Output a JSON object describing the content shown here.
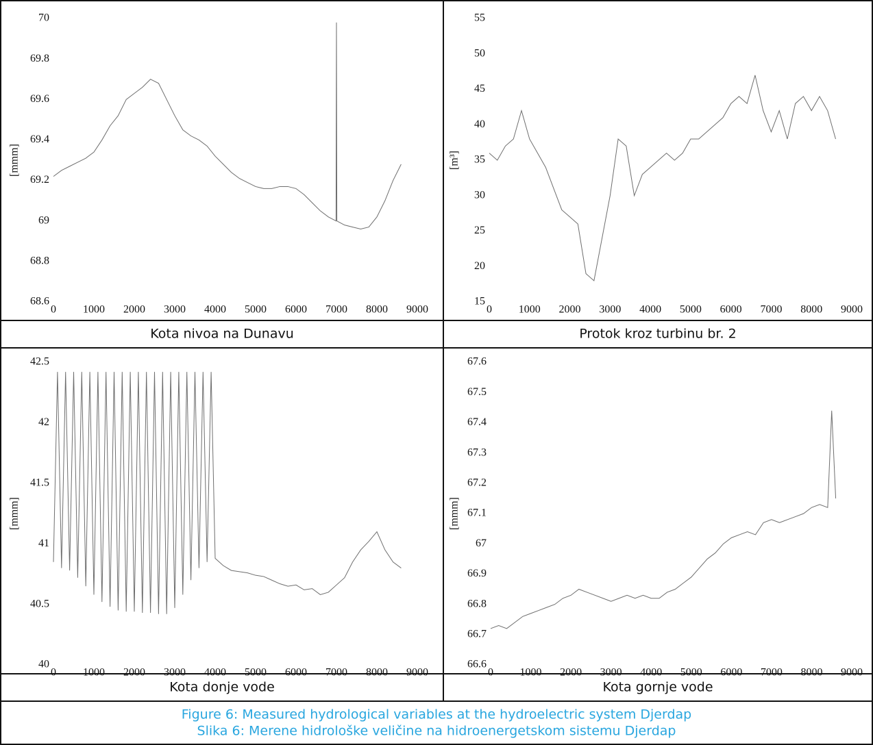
{
  "chart_data": [
    {
      "type": "line",
      "title": "Kota nivoa na Dunavu",
      "ylabel": "[mmm]",
      "color": "#6e6e6e",
      "grid": false,
      "xlim": [
        0,
        9000
      ],
      "xticks": [
        0,
        1000,
        2000,
        3000,
        4000,
        5000,
        6000,
        7000,
        8000,
        9000
      ],
      "ylim": [
        68.6,
        70
      ],
      "yticks": [
        68.6,
        68.8,
        69,
        69.2,
        69.4,
        69.6,
        69.8,
        70
      ],
      "x": [
        0,
        200,
        400,
        600,
        800,
        1000,
        1200,
        1400,
        1600,
        1800,
        2000,
        2200,
        2400,
        2600,
        2800,
        3000,
        3200,
        3400,
        3600,
        3800,
        4000,
        4200,
        4400,
        4600,
        4800,
        5000,
        5200,
        5400,
        5600,
        5800,
        6000,
        6200,
        6400,
        6600,
        6800,
        6990,
        7000,
        7010,
        7200,
        7400,
        7600,
        7800,
        8000,
        8200,
        8400,
        8600
      ],
      "values": [
        69.22,
        69.25,
        69.27,
        69.29,
        69.31,
        69.34,
        69.4,
        69.47,
        69.52,
        69.6,
        69.63,
        69.66,
        69.7,
        69.68,
        69.6,
        69.52,
        69.45,
        69.42,
        69.4,
        69.37,
        69.32,
        69.28,
        69.24,
        69.21,
        69.19,
        69.17,
        69.16,
        69.16,
        69.17,
        69.17,
        69.16,
        69.13,
        69.09,
        69.05,
        69.02,
        69.0,
        69.98,
        69.0,
        68.98,
        68.97,
        68.96,
        68.97,
        69.02,
        69.1,
        69.2,
        69.28
      ]
    },
    {
      "type": "line",
      "title": "Protok kroz turbinu br. 2",
      "ylabel": "[m³]",
      "color": "#6e6e6e",
      "grid": false,
      "xlim": [
        0,
        9000
      ],
      "xticks": [
        0,
        1000,
        2000,
        3000,
        4000,
        5000,
        6000,
        7000,
        8000,
        9000
      ],
      "ylim": [
        15,
        55
      ],
      "yticks": [
        15,
        20,
        25,
        30,
        35,
        40,
        45,
        50,
        55
      ],
      "x": [
        0,
        200,
        400,
        600,
        800,
        1000,
        1200,
        1400,
        1600,
        1800,
        2000,
        2200,
        2400,
        2600,
        2800,
        3000,
        3200,
        3400,
        3600,
        3800,
        4000,
        4200,
        4400,
        4600,
        4800,
        5000,
        5200,
        5400,
        5600,
        5800,
        6000,
        6200,
        6400,
        6600,
        6800,
        7000,
        7200,
        7400,
        7600,
        7800,
        8000,
        8200,
        8400,
        8600
      ],
      "values": [
        36,
        35,
        37,
        38,
        42,
        38,
        36,
        34,
        31,
        28,
        27,
        26,
        19,
        18,
        24,
        30,
        38,
        37,
        30,
        33,
        34,
        35,
        36,
        35,
        36,
        38,
        38,
        39,
        40,
        41,
        43,
        44,
        43,
        47,
        42,
        39,
        42,
        38,
        43,
        44,
        42,
        44,
        42,
        38
      ]
    },
    {
      "type": "line",
      "title": "Kota donje vode",
      "ylabel": "[mmm]",
      "color": "#6e6e6e",
      "grid": false,
      "xlim": [
        0,
        9000
      ],
      "xticks": [
        0,
        1000,
        2000,
        3000,
        4000,
        5000,
        6000,
        7000,
        8000,
        9000
      ],
      "ylim": [
        40,
        42.5
      ],
      "yticks": [
        40,
        40.5,
        41,
        41.5,
        42,
        42.5
      ],
      "x": [
        0,
        100,
        200,
        300,
        400,
        500,
        600,
        700,
        800,
        900,
        1000,
        1100,
        1200,
        1300,
        1400,
        1500,
        1600,
        1700,
        1800,
        1900,
        2000,
        2100,
        2200,
        2300,
        2400,
        2500,
        2600,
        2700,
        2800,
        2900,
        3000,
        3100,
        3200,
        3300,
        3400,
        3500,
        3600,
        3700,
        3800,
        3900,
        4000,
        4200,
        4400,
        4600,
        4800,
        5000,
        5200,
        5400,
        5600,
        5800,
        6000,
        6200,
        6400,
        6600,
        6800,
        7000,
        7200,
        7400,
        7600,
        7800,
        8000,
        8200,
        8400,
        8600
      ],
      "values": [
        40.85,
        42.42,
        40.8,
        42.42,
        40.78,
        42.42,
        40.72,
        42.42,
        40.65,
        42.42,
        40.58,
        42.42,
        40.52,
        42.42,
        40.48,
        42.42,
        40.45,
        42.42,
        40.44,
        42.42,
        40.44,
        42.42,
        40.43,
        42.42,
        40.43,
        42.42,
        40.42,
        42.42,
        40.42,
        42.42,
        40.47,
        42.42,
        40.58,
        42.42,
        40.7,
        42.42,
        40.8,
        42.42,
        40.85,
        42.42,
        40.88,
        40.82,
        40.78,
        40.77,
        40.76,
        40.74,
        40.73,
        40.7,
        40.67,
        40.65,
        40.66,
        40.62,
        40.63,
        40.58,
        40.6,
        40.66,
        40.72,
        40.85,
        40.95,
        41.02,
        41.1,
        40.95,
        40.85,
        40.8
      ]
    },
    {
      "type": "line",
      "title": "Kota gornje vode",
      "ylabel": "[mmm]",
      "color": "#6e6e6e",
      "grid": false,
      "xlim": [
        0,
        9000
      ],
      "xticks": [
        0,
        1000,
        2000,
        3000,
        4000,
        5000,
        6000,
        7000,
        8000,
        9000
      ],
      "ylim": [
        66.6,
        67.6
      ],
      "yticks": [
        66.6,
        66.7,
        66.8,
        66.9,
        67,
        67.1,
        67.2,
        67.3,
        67.4,
        67.5,
        67.6
      ],
      "x": [
        0,
        200,
        400,
        600,
        800,
        1000,
        1200,
        1400,
        1600,
        1800,
        2000,
        2200,
        2400,
        2600,
        2800,
        3000,
        3200,
        3400,
        3600,
        3800,
        4000,
        4200,
        4400,
        4600,
        4800,
        5000,
        5200,
        5400,
        5600,
        5800,
        6000,
        6200,
        6400,
        6600,
        6800,
        7000,
        7200,
        7400,
        7600,
        7800,
        8000,
        8200,
        8400,
        8500,
        8600
      ],
      "values": [
        66.72,
        66.73,
        66.72,
        66.74,
        66.76,
        66.77,
        66.78,
        66.79,
        66.8,
        66.82,
        66.83,
        66.85,
        66.84,
        66.83,
        66.82,
        66.81,
        66.82,
        66.83,
        66.82,
        66.83,
        66.82,
        66.82,
        66.84,
        66.85,
        66.87,
        66.89,
        66.92,
        66.95,
        66.97,
        67.0,
        67.02,
        67.03,
        67.04,
        67.03,
        67.07,
        67.08,
        67.07,
        67.08,
        67.09,
        67.1,
        67.12,
        67.13,
        67.12,
        67.44,
        67.15
      ]
    }
  ],
  "caption": [
    "Figure 6: Measured hydrological variables at the hydroelectric system Djerdap",
    "Slika 6: Merene hidrološke veličine na hidroenergetskom sistemu Djerdap"
  ]
}
